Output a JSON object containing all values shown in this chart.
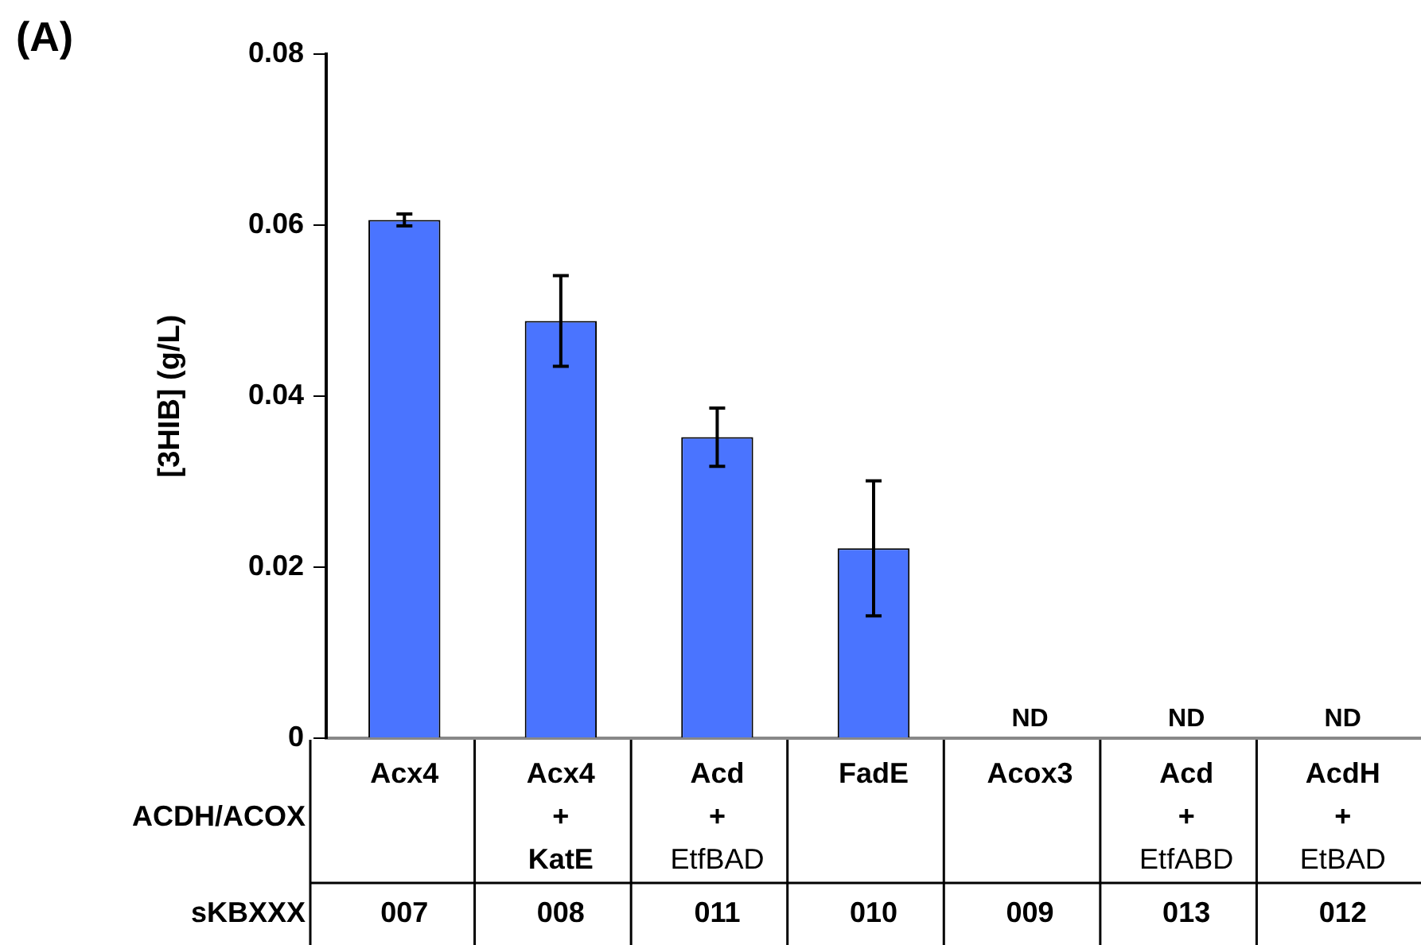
{
  "chart_data": {
    "type": "bar",
    "title": "(A)",
    "ylabel": "[3HIB] (g/L)",
    "categories": [
      "Acx4",
      "Acx4\n+\nKatE",
      "Acd\n+\nEtfBAD",
      "FadE",
      "Acox3",
      "Acd\n+\nEtfABD",
      "AcdH\n+\nEtBAD"
    ],
    "values": [
      0.0606,
      0.0488,
      0.0352,
      0.0222,
      null,
      null,
      null
    ],
    "errors": [
      0.0007,
      0.0053,
      0.0034,
      0.0079,
      null,
      null,
      null
    ],
    "value_labels": [
      null,
      null,
      null,
      null,
      "ND",
      "ND",
      "ND"
    ],
    "color": "#4a74ff",
    "ylim": [
      0,
      0.08
    ],
    "yticks": [
      0,
      0.02,
      0.04,
      0.06,
      0.08
    ],
    "grid": false,
    "legend": false,
    "annotations": [
      "ACDH/ACOX",
      "sKBXXX",
      "007",
      "008",
      "011",
      "010",
      "009",
      "013",
      "012"
    ]
  }
}
